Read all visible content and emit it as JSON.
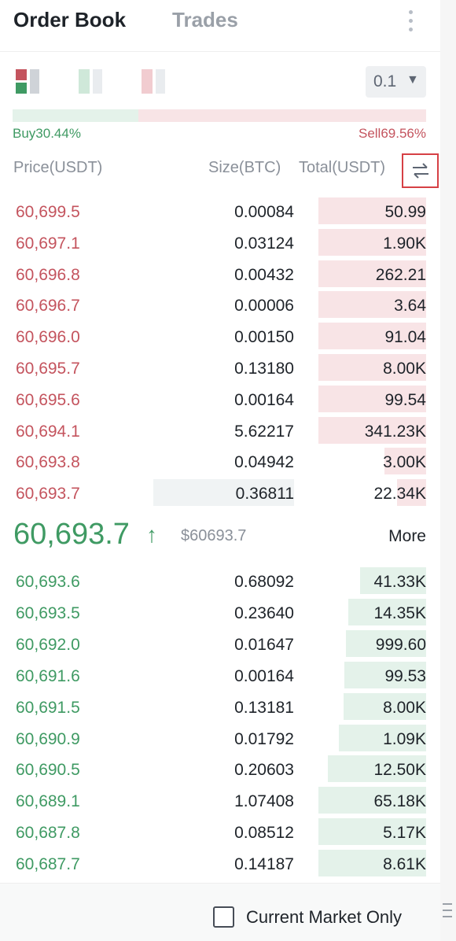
{
  "tabs": {
    "order_book": "Order Book",
    "trades": "Trades"
  },
  "precision": {
    "value": "0.1"
  },
  "ratio": {
    "buy_label": "Buy30.44%",
    "sell_label": "Sell69.56%",
    "buy_fraction": 0.3044
  },
  "columns": {
    "price": "Price(USDT)",
    "size": "Size(BTC)",
    "total": "Total(USDT)"
  },
  "asks": [
    {
      "price": "60,699.5",
      "size": "0.00084",
      "total": "50.99",
      "depth": 0.26
    },
    {
      "price": "60,697.1",
      "size": "0.03124",
      "total": "1.90K",
      "depth": 0.26
    },
    {
      "price": "60,696.8",
      "size": "0.00432",
      "total": "262.21",
      "depth": 0.26
    },
    {
      "price": "60,696.7",
      "size": "0.00006",
      "total": "3.64",
      "depth": 0.26
    },
    {
      "price": "60,696.0",
      "size": "0.00150",
      "total": "91.04",
      "depth": 0.26
    },
    {
      "price": "60,695.7",
      "size": "0.13180",
      "total": "8.00K",
      "depth": 0.26
    },
    {
      "price": "60,695.6",
      "size": "0.00164",
      "total": "99.54",
      "depth": 0.26
    },
    {
      "price": "60,694.1",
      "size": "5.62217",
      "total": "341.23K",
      "depth": 0.26
    },
    {
      "price": "60,693.8",
      "size": "0.04942",
      "total": "3.00K",
      "depth": 0.1
    },
    {
      "price": "60,693.7",
      "size": "0.36811",
      "total": "22.34K",
      "depth": 0.07,
      "size_depth": 0.34
    }
  ],
  "last": {
    "price": "60,693.7",
    "arrow": "↑",
    "mark": "$60693.7",
    "more": "More"
  },
  "bids": [
    {
      "price": "60,693.6",
      "size": "0.68092",
      "total": "41.33K",
      "depth": 0.16
    },
    {
      "price": "60,693.5",
      "size": "0.23640",
      "total": "14.35K",
      "depth": 0.188
    },
    {
      "price": "60,692.0",
      "size": "0.01647",
      "total": "999.60",
      "depth": 0.193
    },
    {
      "price": "60,691.6",
      "size": "0.00164",
      "total": "99.53",
      "depth": 0.198
    },
    {
      "price": "60,691.5",
      "size": "0.13181",
      "total": "8.00K",
      "depth": 0.2
    },
    {
      "price": "60,690.9",
      "size": "0.01792",
      "total": "1.09K",
      "depth": 0.211
    },
    {
      "price": "60,690.5",
      "size": "0.20603",
      "total": "12.50K",
      "depth": 0.237
    },
    {
      "price": "60,689.1",
      "size": "1.07408",
      "total": "65.18K",
      "depth": 0.26
    },
    {
      "price": "60,687.8",
      "size": "0.08512",
      "total": "5.17K",
      "depth": 0.26
    },
    {
      "price": "60,687.7",
      "size": "0.14187",
      "total": "8.61K",
      "depth": 0.26
    }
  ],
  "footer": {
    "current_market_only": "Current Market Only"
  },
  "colors": {
    "sell": "#c4545e",
    "buy": "#3f9a63",
    "sell_bg": "#f8e4e6",
    "buy_bg": "#e4f2ea"
  },
  "icons": [
    "more-vertical-icon",
    "layout-both-icon",
    "layout-bids-icon",
    "layout-asks-icon",
    "caret-down-icon",
    "swap-icon",
    "arrow-up-icon",
    "checkbox-icon"
  ]
}
